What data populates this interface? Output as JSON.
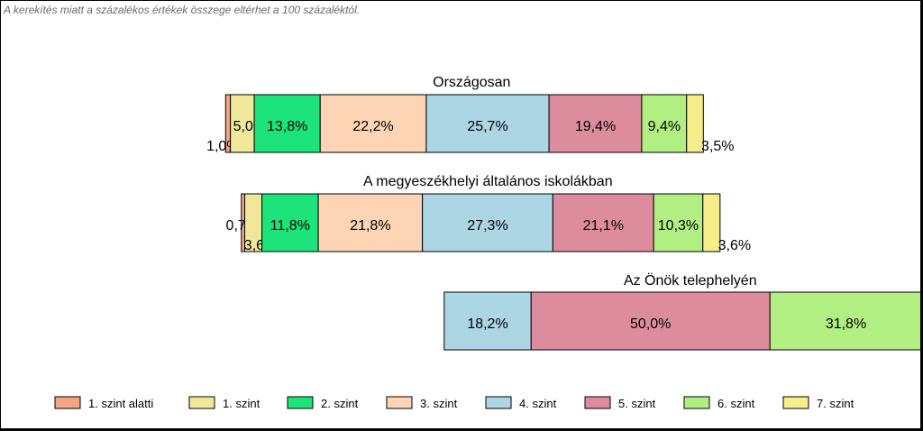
{
  "note": "A kerekítés miatt a  százalékos értékek összege eltérhet a 100 százaléktól.",
  "chart_data": {
    "type": "bar",
    "orientation": "horizontal",
    "stacked": true,
    "series": [
      {
        "name": "1. szint alatti",
        "color": "#f4a582"
      },
      {
        "name": "1. szint",
        "color": "#efe79a"
      },
      {
        "name": "2. szint",
        "color": "#1de47a"
      },
      {
        "name": "3. szint",
        "color": "#fdd5b4"
      },
      {
        "name": "4. szint",
        "color": "#acd6e4"
      },
      {
        "name": "5. szint",
        "color": "#dd8c9d"
      },
      {
        "name": "6. szint",
        "color": "#b1ef82"
      },
      {
        "name": "7. szint",
        "color": "#f5ee8a"
      }
    ],
    "groups": [
      {
        "title": "Országosan",
        "values": [
          1.0,
          5.0,
          13.8,
          22.2,
          25.7,
          19.4,
          9.4,
          3.5
        ],
        "labels": [
          "1,0%",
          "5,0%",
          "13,8%",
          "22,2%",
          "25,7%",
          "19,4%",
          "9,4%",
          "3,5%"
        ]
      },
      {
        "title": "A megyeszékhelyi általános iskolákban",
        "values": [
          0.7,
          3.6,
          11.8,
          21.8,
          27.3,
          21.1,
          10.3,
          3.6
        ],
        "labels": [
          "0,7%",
          "3,6%",
          "11,8%",
          "21,8%",
          "27,3%",
          "21,1%",
          "10,3%",
          "3,6%"
        ]
      },
      {
        "title": "Az Önök telephelyén",
        "values": [
          0,
          0,
          0,
          0,
          18.2,
          50.0,
          31.8,
          0
        ],
        "labels": [
          "",
          "",
          "",
          "",
          "18,2%",
          "50,0%",
          "31,8%",
          ""
        ]
      }
    ],
    "legend_position": "bottom"
  }
}
